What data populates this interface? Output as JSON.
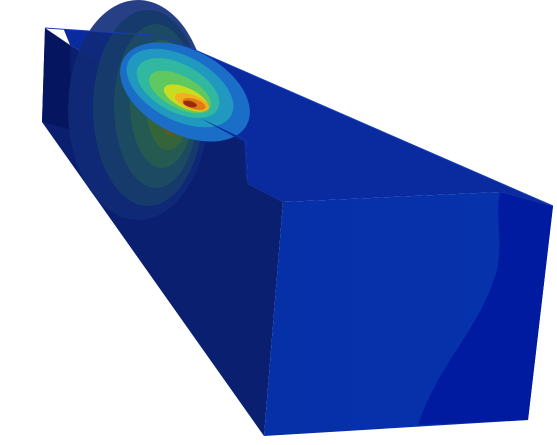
{
  "scene": {
    "object": "rectangular-block",
    "rendering": "fem-contour-plot",
    "colormap": [
      "#00008f",
      "#0033cc",
      "#00a0c8",
      "#28c878",
      "#a0dc28",
      "#f0e628",
      "#f08c1e",
      "#c81e0a",
      "#7a0a0a"
    ],
    "background_color": "#ffffff",
    "face_colors": {
      "top": "#0a2ba0",
      "front": "#0b1f70",
      "side": "#0630a8",
      "side_dark": "#001aa0"
    },
    "hotspot_colors": [
      "#6b0a0a",
      "#9a2a0a",
      "#c04a0a",
      "#e07a14",
      "#f0b020",
      "#c8dc20",
      "#60c860",
      "#30b8a0",
      "#2090c0"
    ]
  }
}
